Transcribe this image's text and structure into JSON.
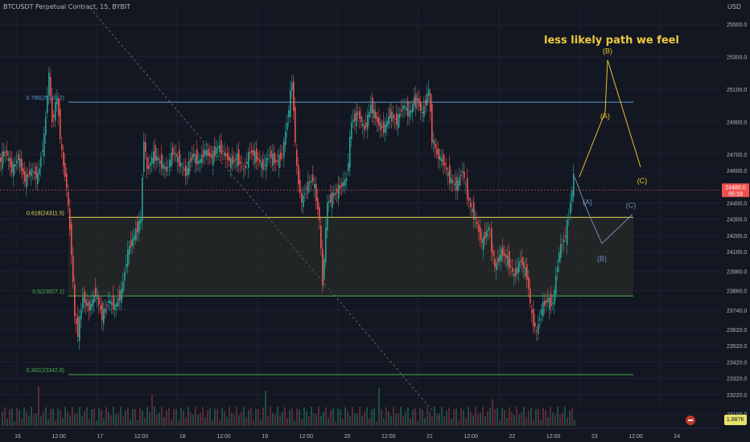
{
  "header": {
    "symbol_title": "BTCUSDT Perpetual Contract, 15, BYBIT",
    "currency": "USD"
  },
  "chart_data": {
    "type": "line",
    "title": "less likely path we feel",
    "price_axis_ticks": [
      "25500.0",
      "25300.0",
      "25100.0",
      "24900.0",
      "24700.0",
      "24600.0",
      "24400.0",
      "24300.0",
      "24200.0",
      "24100.0",
      "23980.0",
      "23860.0",
      "23740.0",
      "23620.0",
      "23520.0",
      "23420.0",
      "23320.0",
      "23220.0",
      "23100.0"
    ],
    "time_axis_ticks": [
      "16",
      "12:00",
      "17",
      "12:00",
      "18",
      "12:00",
      "19",
      "12:00",
      "20",
      "12:00",
      "21",
      "12:00",
      "22",
      "12:00",
      "23",
      "12:00",
      "24",
      "12:00"
    ],
    "fib_levels": [
      {
        "label": "0.786(25020.2)",
        "price": 25020.2,
        "color": "#5b9bd5"
      },
      {
        "label": "0.618(24311.5)",
        "price": 24311.5,
        "color": "#e6d75a"
      },
      {
        "label": "0.5(23827.1)",
        "price": 23827.1,
        "color": "#4caf50"
      },
      {
        "label": "0.382(23342.6)",
        "price": 23342.6,
        "color": "#4caf50"
      }
    ],
    "last_price": {
      "value": "24480.0",
      "countdown": "05:19",
      "color": "#ef5350"
    },
    "volume_label": "1.887K",
    "price_path": [
      [
        0,
        24650
      ],
      [
        8,
        24720
      ],
      [
        16,
        24600
      ],
      [
        24,
        24680
      ],
      [
        32,
        24540
      ],
      [
        40,
        24600
      ],
      [
        48,
        24560
      ],
      [
        56,
        24800
      ],
      [
        62,
        25200
      ],
      [
        66,
        24900
      ],
      [
        72,
        25050
      ],
      [
        78,
        24700
      ],
      [
        84,
        24500
      ],
      [
        90,
        24100
      ],
      [
        94,
        23700
      ],
      [
        98,
        23600
      ],
      [
        104,
        23820
      ],
      [
        112,
        23750
      ],
      [
        120,
        23850
      ],
      [
        128,
        23700
      ],
      [
        136,
        23800
      ],
      [
        144,
        23760
      ],
      [
        152,
        23850
      ],
      [
        160,
        24100
      ],
      [
        168,
        24200
      ],
      [
        176,
        24300
      ],
      [
        180,
        24800
      ],
      [
        184,
        24600
      ],
      [
        192,
        24700
      ],
      [
        200,
        24650
      ],
      [
        208,
        24600
      ],
      [
        216,
        24720
      ],
      [
        224,
        24650
      ],
      [
        232,
        24580
      ],
      [
        240,
        24700
      ],
      [
        248,
        24650
      ],
      [
        256,
        24720
      ],
      [
        264,
        24680
      ],
      [
        272,
        24750
      ],
      [
        280,
        24700
      ],
      [
        288,
        24650
      ],
      [
        296,
        24680
      ],
      [
        304,
        24600
      ],
      [
        312,
        24720
      ],
      [
        320,
        24680
      ],
      [
        328,
        24620
      ],
      [
        336,
        24700
      ],
      [
        344,
        24650
      ],
      [
        352,
        24700
      ],
      [
        358,
        24900
      ],
      [
        364,
        25150
      ],
      [
        370,
        24600
      ],
      [
        376,
        24400
      ],
      [
        382,
        24500
      ],
      [
        390,
        24550
      ],
      [
        398,
        24300
      ],
      [
        402,
        23900
      ],
      [
        408,
        24400
      ],
      [
        416,
        24450
      ],
      [
        424,
        24500
      ],
      [
        432,
        24550
      ],
      [
        438,
        24900
      ],
      [
        446,
        24950
      ],
      [
        454,
        24850
      ],
      [
        462,
        25000
      ],
      [
        470,
        24900
      ],
      [
        478,
        24850
      ],
      [
        486,
        24950
      ],
      [
        494,
        24900
      ],
      [
        502,
        25000
      ],
      [
        510,
        24950
      ],
      [
        518,
        25050
      ],
      [
        526,
        24950
      ],
      [
        534,
        25100
      ],
      [
        538,
        24800
      ],
      [
        544,
        24700
      ],
      [
        552,
        24650
      ],
      [
        560,
        24550
      ],
      [
        568,
        24500
      ],
      [
        576,
        24600
      ],
      [
        584,
        24400
      ],
      [
        592,
        24300
      ],
      [
        600,
        24150
      ],
      [
        608,
        24250
      ],
      [
        616,
        24000
      ],
      [
        624,
        24100
      ],
      [
        632,
        24050
      ],
      [
        640,
        23950
      ],
      [
        648,
        24050
      ],
      [
        656,
        23950
      ],
      [
        662,
        23700
      ],
      [
        668,
        23600
      ],
      [
        674,
        23750
      ],
      [
        680,
        23800
      ],
      [
        688,
        23780
      ],
      [
        696,
        24100
      ],
      [
        704,
        24200
      ],
      [
        710,
        24400
      ],
      [
        714,
        24560
      ]
    ],
    "projection_bullish": {
      "labels": [
        "(A)",
        "(B)",
        "(C)"
      ],
      "points": [
        [
          720,
          24560
        ],
        [
          752,
          24960
        ],
        [
          755,
          25280
        ],
        [
          796,
          24620
        ]
      ],
      "color": "#e6c229"
    },
    "projection_bearish": {
      "labels": [
        "(A)",
        "(B)",
        "(C)"
      ],
      "points": [
        [
          714,
          24560
        ],
        [
          730,
          24350
        ],
        [
          748,
          24150
        ],
        [
          786,
          24330
        ]
      ],
      "color": "#6f90b8"
    }
  }
}
